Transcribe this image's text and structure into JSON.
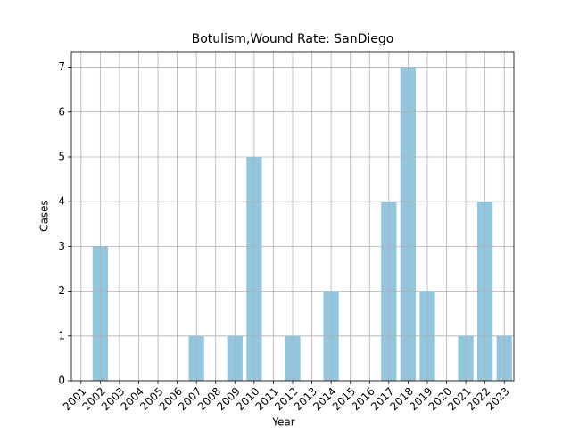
{
  "chart_data": {
    "type": "bar",
    "title": "Botulism,Wound Rate: SanDiego",
    "x_label": "Year",
    "y_label": "Cases",
    "categories": [
      "2001",
      "2002",
      "2003",
      "2004",
      "2005",
      "2006",
      "2007",
      "2008",
      "2009",
      "2010",
      "2011",
      "2012",
      "2013",
      "2014",
      "2015",
      "2016",
      "2017",
      "2018",
      "2019",
      "2020",
      "2021",
      "2022",
      "2023"
    ],
    "values": [
      0,
      3,
      0,
      0,
      0,
      0,
      1,
      0,
      1,
      5,
      0,
      1,
      0,
      2,
      0,
      0,
      4,
      7,
      2,
      0,
      1,
      4,
      1
    ],
    "color": "#92c5de",
    "ylim": [
      0,
      7.35
    ],
    "yticks": [
      0,
      1,
      2,
      3,
      4,
      5,
      6,
      7
    ],
    "grid": true
  }
}
